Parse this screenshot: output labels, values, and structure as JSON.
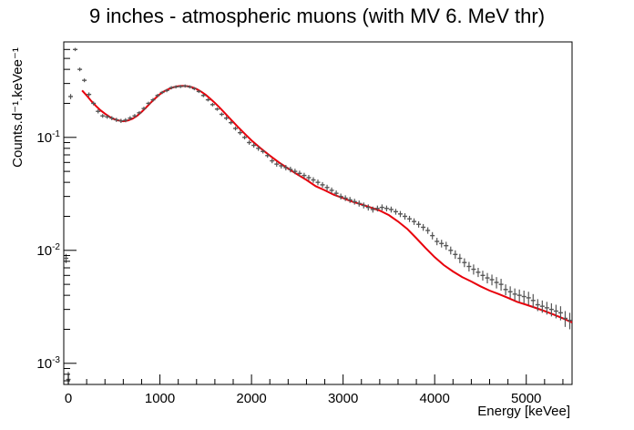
{
  "chart_data": {
    "type": "scatter",
    "title": "9 inches - atmospheric muons (with MV 6. MeV thr)",
    "xlabel": "Energy [keVee]",
    "ylabel": "Counts.d⁻¹.keVee⁻¹",
    "xlim": [
      -50,
      5500
    ],
    "ylim": [
      0.00065,
      0.7
    ],
    "yscale": "log",
    "grid": false,
    "x_ticks": [
      {
        "value": 0,
        "label": "0"
      },
      {
        "value": 1000,
        "label": "1000"
      },
      {
        "value": 2000,
        "label": "2000"
      },
      {
        "value": 3000,
        "label": "3000"
      },
      {
        "value": 4000,
        "label": "4000"
      },
      {
        "value": 5000,
        "label": "5000"
      }
    ],
    "y_ticks": [
      {
        "value": 0.1,
        "base": "10",
        "exp": "-1"
      },
      {
        "value": 0.01,
        "base": "10",
        "exp": "-2"
      },
      {
        "value": 0.001,
        "base": "10",
        "exp": "-3"
      }
    ],
    "colors": {
      "data": "#555555",
      "fit": "#e8000b",
      "axis": "#000000"
    },
    "series": [
      {
        "type": "scatter_errorbars",
        "x": [
          -25,
          0,
          25,
          75,
          125,
          175,
          225,
          275,
          325,
          375,
          425,
          475,
          525,
          575,
          625,
          675,
          725,
          775,
          825,
          875,
          925,
          975,
          1025,
          1075,
          1125,
          1175,
          1225,
          1275,
          1325,
          1375,
          1425,
          1475,
          1525,
          1575,
          1625,
          1675,
          1725,
          1775,
          1825,
          1875,
          1925,
          1975,
          2025,
          2075,
          2125,
          2175,
          2225,
          2275,
          2325,
          2375,
          2425,
          2475,
          2525,
          2575,
          2625,
          2675,
          2725,
          2775,
          2825,
          2875,
          2925,
          2975,
          3025,
          3075,
          3125,
          3175,
          3225,
          3275,
          3325,
          3375,
          3425,
          3475,
          3525,
          3575,
          3625,
          3675,
          3725,
          3775,
          3825,
          3875,
          3925,
          3975,
          4025,
          4075,
          4125,
          4175,
          4225,
          4275,
          4325,
          4375,
          4425,
          4475,
          4525,
          4575,
          4625,
          4675,
          4725,
          4775,
          4825,
          4875,
          4925,
          4975,
          5025,
          5075,
          5125,
          5175,
          5225,
          5275,
          5325,
          5375,
          5425,
          5475
        ],
        "y": [
          0.0085,
          0.00072,
          0.23,
          0.6,
          0.4,
          0.32,
          0.24,
          0.2,
          0.17,
          0.155,
          0.152,
          0.148,
          0.143,
          0.14,
          0.142,
          0.148,
          0.155,
          0.165,
          0.18,
          0.2,
          0.215,
          0.235,
          0.25,
          0.26,
          0.275,
          0.28,
          0.282,
          0.285,
          0.28,
          0.27,
          0.255,
          0.235,
          0.215,
          0.195,
          0.178,
          0.16,
          0.148,
          0.135,
          0.12,
          0.11,
          0.1,
          0.09,
          0.085,
          0.08,
          0.075,
          0.069,
          0.062,
          0.058,
          0.056,
          0.054,
          0.052,
          0.05,
          0.048,
          0.046,
          0.044,
          0.042,
          0.04,
          0.038,
          0.036,
          0.034,
          0.032,
          0.03,
          0.029,
          0.028,
          0.027,
          0.026,
          0.025,
          0.024,
          0.023,
          0.0235,
          0.024,
          0.0235,
          0.023,
          0.022,
          0.021,
          0.02,
          0.019,
          0.018,
          0.017,
          0.016,
          0.015,
          0.0135,
          0.012,
          0.0115,
          0.011,
          0.01,
          0.0092,
          0.0085,
          0.0078,
          0.0072,
          0.0068,
          0.0064,
          0.006,
          0.0057,
          0.0055,
          0.0052,
          0.005,
          0.0045,
          0.0043,
          0.0041,
          0.004,
          0.0039,
          0.0038,
          0.0036,
          0.0033,
          0.0032,
          0.0031,
          0.003,
          0.0029,
          0.0028,
          0.0025,
          0.0024
        ],
        "err": [
          0.0008,
          0.00012,
          0.012,
          0.02,
          0.015,
          0.012,
          0.01,
          0.008,
          0.007,
          0.006,
          0.006,
          0.006,
          0.006,
          0.006,
          0.006,
          0.006,
          0.006,
          0.006,
          0.007,
          0.007,
          0.008,
          0.008,
          0.008,
          0.009,
          0.009,
          0.009,
          0.009,
          0.009,
          0.009,
          0.009,
          0.008,
          0.008,
          0.007,
          0.007,
          0.006,
          0.006,
          0.006,
          0.005,
          0.005,
          0.005,
          0.004,
          0.004,
          0.004,
          0.004,
          0.003,
          0.003,
          0.003,
          0.003,
          0.003,
          0.003,
          0.003,
          0.0028,
          0.0027,
          0.0026,
          0.0025,
          0.0024,
          0.0023,
          0.0022,
          0.0021,
          0.002,
          0.0019,
          0.0018,
          0.0017,
          0.0017,
          0.0016,
          0.0016,
          0.0015,
          0.0015,
          0.0014,
          0.0014,
          0.0015,
          0.0014,
          0.0014,
          0.0013,
          0.0013,
          0.0013,
          0.0012,
          0.0012,
          0.0011,
          0.0011,
          0.001,
          0.001,
          0.0009,
          0.0009,
          0.0009,
          0.0008,
          0.0008,
          0.0008,
          0.0007,
          0.0007,
          0.0007,
          0.0006,
          0.0006,
          0.0006,
          0.0006,
          0.0006,
          0.0006,
          0.0005,
          0.0005,
          0.0005,
          0.0005,
          0.0005,
          0.0005,
          0.0005,
          0.0004,
          0.0004,
          0.0004,
          0.0004,
          0.0004,
          0.0004,
          0.0004,
          0.0004
        ]
      },
      {
        "type": "line",
        "x": [
          150,
          200,
          250,
          300,
          350,
          400,
          450,
          500,
          550,
          600,
          650,
          700,
          750,
          800,
          850,
          900,
          950,
          1000,
          1050,
          1100,
          1150,
          1200,
          1250,
          1300,
          1350,
          1400,
          1450,
          1500,
          1550,
          1600,
          1650,
          1700,
          1750,
          1800,
          1850,
          1900,
          1950,
          2000,
          2100,
          2200,
          2300,
          2400,
          2500,
          2600,
          2700,
          2800,
          2900,
          3000,
          3100,
          3200,
          3300,
          3400,
          3500,
          3600,
          3700,
          3800,
          3900,
          4000,
          4100,
          4200,
          4300,
          4400,
          4500,
          4600,
          4700,
          4800,
          4900,
          5000,
          5100,
          5200,
          5300,
          5400,
          5500
        ],
        "y": [
          0.26,
          0.235,
          0.21,
          0.19,
          0.174,
          0.162,
          0.152,
          0.145,
          0.141,
          0.139,
          0.141,
          0.146,
          0.155,
          0.168,
          0.184,
          0.203,
          0.222,
          0.241,
          0.257,
          0.269,
          0.278,
          0.284,
          0.286,
          0.284,
          0.278,
          0.268,
          0.254,
          0.238,
          0.22,
          0.202,
          0.184,
          0.167,
          0.151,
          0.137,
          0.124,
          0.113,
          0.103,
          0.094,
          0.08,
          0.069,
          0.06,
          0.053,
          0.047,
          0.042,
          0.037,
          0.034,
          0.031,
          0.029,
          0.027,
          0.0255,
          0.024,
          0.0225,
          0.0205,
          0.018,
          0.0155,
          0.0128,
          0.0105,
          0.0087,
          0.0074,
          0.0065,
          0.0058,
          0.0053,
          0.0048,
          0.0044,
          0.0041,
          0.0038,
          0.0035,
          0.0033,
          0.0031,
          0.0029,
          0.0027,
          0.0025,
          0.0023
        ]
      }
    ]
  }
}
